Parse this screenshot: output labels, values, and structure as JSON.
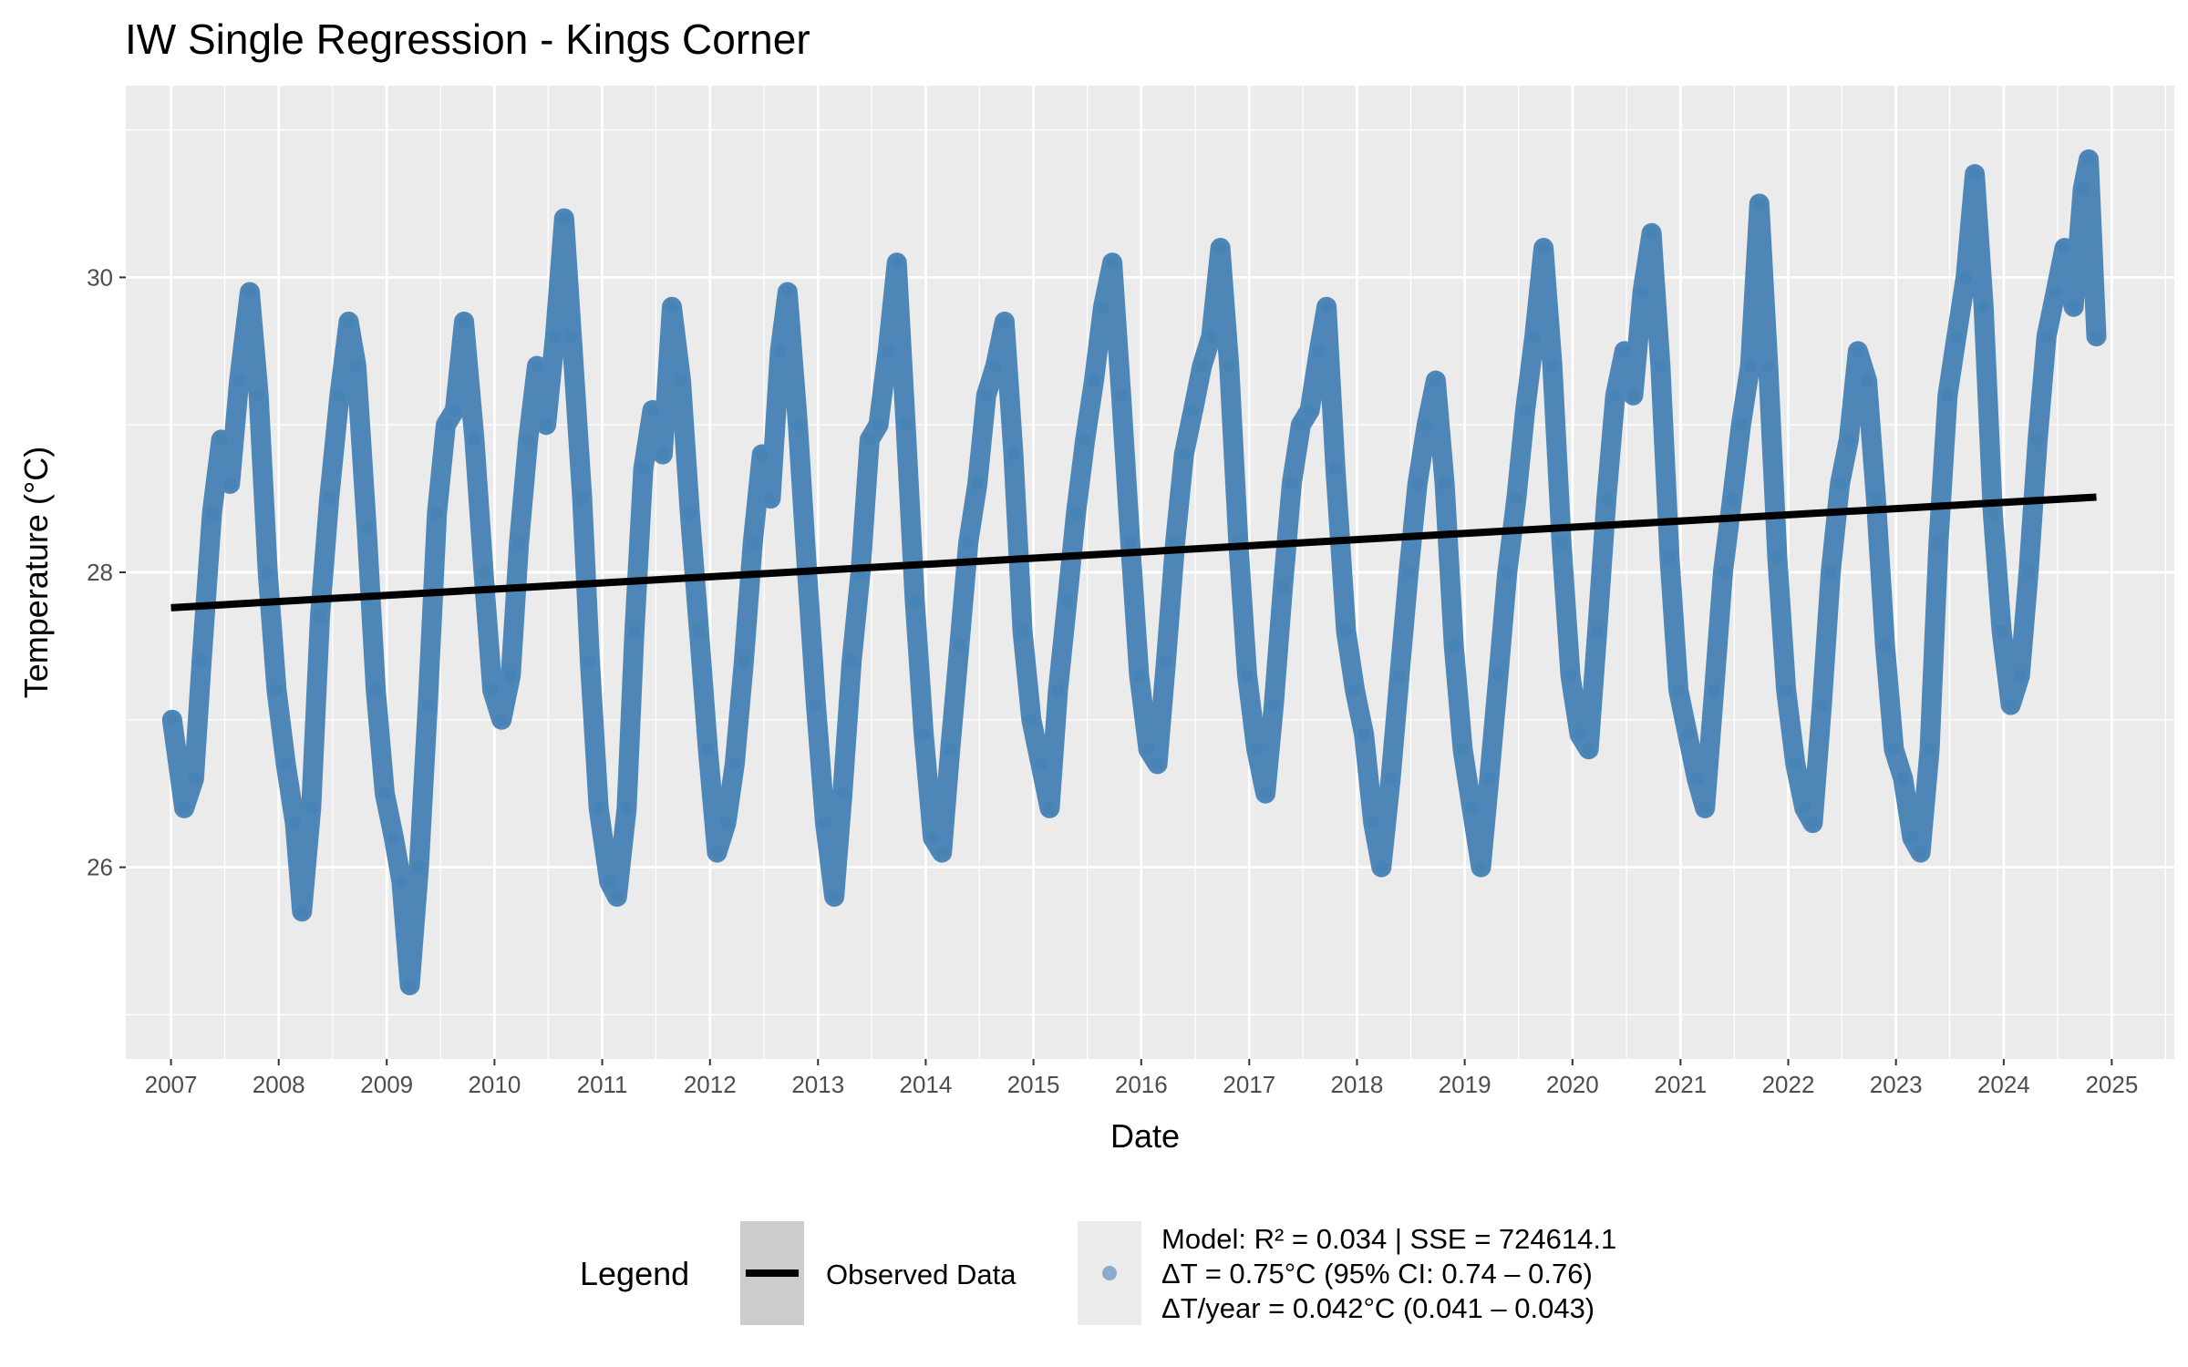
{
  "chart_data": {
    "type": "line",
    "title": "IW Single Regression - Kings Corner",
    "xlabel": "Date",
    "ylabel": "Temperature (°C)",
    "x_ticks": [
      "2007",
      "2008",
      "2009",
      "2010",
      "2011",
      "2012",
      "2013",
      "2014",
      "2015",
      "2016",
      "2017",
      "2018",
      "2019",
      "2020",
      "2021",
      "2022",
      "2023",
      "2024",
      "2025"
    ],
    "y_ticks": [
      26,
      28,
      30
    ],
    "xlim": [
      "2006-08-01",
      "2025-08-01"
    ],
    "ylim": [
      24.7,
      31.3
    ],
    "grid": true,
    "legend_placement": "bottom",
    "series": [
      {
        "name": "Observed Data",
        "kind": "observed",
        "color": "#4682B4",
        "points": [
          [
            "2007-01-05",
            27.0
          ],
          [
            "2007-02-15",
            26.4
          ],
          [
            "2007-03-20",
            26.6
          ],
          [
            "2007-04-15",
            27.4
          ],
          [
            "2007-05-20",
            28.4
          ],
          [
            "2007-06-20",
            28.9
          ],
          [
            "2007-07-20",
            28.6
          ],
          [
            "2007-08-20",
            29.3
          ],
          [
            "2007-09-25",
            29.9
          ],
          [
            "2007-10-25",
            29.2
          ],
          [
            "2007-11-25",
            28.0
          ],
          [
            "2007-12-25",
            27.2
          ],
          [
            "2008-01-25",
            26.7
          ],
          [
            "2008-02-25",
            26.3
          ],
          [
            "2008-03-20",
            25.7
          ],
          [
            "2008-04-20",
            26.4
          ],
          [
            "2008-05-20",
            27.7
          ],
          [
            "2008-06-20",
            28.5
          ],
          [
            "2008-07-25",
            29.2
          ],
          [
            "2008-08-25",
            29.7
          ],
          [
            "2008-09-20",
            29.4
          ],
          [
            "2008-10-25",
            28.3
          ],
          [
            "2008-11-25",
            27.2
          ],
          [
            "2008-12-25",
            26.5
          ],
          [
            "2009-01-25",
            26.2
          ],
          [
            "2009-02-20",
            25.9
          ],
          [
            "2009-03-20",
            25.2
          ],
          [
            "2009-04-20",
            26.0
          ],
          [
            "2009-05-20",
            27.1
          ],
          [
            "2009-06-20",
            28.4
          ],
          [
            "2009-07-20",
            29.0
          ],
          [
            "2009-08-20",
            29.1
          ],
          [
            "2009-09-20",
            29.7
          ],
          [
            "2009-10-25",
            28.9
          ],
          [
            "2009-11-25",
            28.0
          ],
          [
            "2009-12-25",
            27.2
          ],
          [
            "2010-01-25",
            27.0
          ],
          [
            "2010-02-25",
            27.3
          ],
          [
            "2010-03-25",
            28.2
          ],
          [
            "2010-04-25",
            28.9
          ],
          [
            "2010-05-25",
            29.4
          ],
          [
            "2010-06-25",
            29.0
          ],
          [
            "2010-07-25",
            29.6
          ],
          [
            "2010-08-25",
            30.4
          ],
          [
            "2010-09-20",
            29.6
          ],
          [
            "2010-10-25",
            28.5
          ],
          [
            "2010-11-20",
            27.4
          ],
          [
            "2010-12-20",
            26.4
          ],
          [
            "2011-01-25",
            25.9
          ],
          [
            "2011-02-20",
            25.8
          ],
          [
            "2011-03-25",
            26.4
          ],
          [
            "2011-04-20",
            27.6
          ],
          [
            "2011-05-20",
            28.7
          ],
          [
            "2011-06-20",
            29.1
          ],
          [
            "2011-07-25",
            28.8
          ],
          [
            "2011-08-25",
            29.8
          ],
          [
            "2011-09-25",
            29.3
          ],
          [
            "2011-10-25",
            28.4
          ],
          [
            "2011-11-25",
            27.6
          ],
          [
            "2011-12-25",
            26.8
          ],
          [
            "2012-01-25",
            26.1
          ],
          [
            "2012-02-25",
            26.3
          ],
          [
            "2012-03-25",
            26.7
          ],
          [
            "2012-04-25",
            27.4
          ],
          [
            "2012-05-25",
            28.2
          ],
          [
            "2012-06-25",
            28.8
          ],
          [
            "2012-07-25",
            28.5
          ],
          [
            "2012-08-25",
            29.5
          ],
          [
            "2012-09-20",
            29.9
          ],
          [
            "2012-10-25",
            29.0
          ],
          [
            "2012-11-25",
            28.0
          ],
          [
            "2012-12-25",
            27.1
          ],
          [
            "2013-01-25",
            26.3
          ],
          [
            "2013-02-25",
            25.8
          ],
          [
            "2013-03-25",
            26.5
          ],
          [
            "2013-04-25",
            27.4
          ],
          [
            "2013-05-25",
            28.0
          ],
          [
            "2013-06-25",
            28.9
          ],
          [
            "2013-07-25",
            29.0
          ],
          [
            "2013-08-25",
            29.5
          ],
          [
            "2013-09-25",
            30.1
          ],
          [
            "2013-10-25",
            29.0
          ],
          [
            "2013-11-25",
            27.8
          ],
          [
            "2013-12-25",
            26.9
          ],
          [
            "2014-01-25",
            26.2
          ],
          [
            "2014-02-25",
            26.1
          ],
          [
            "2014-03-25",
            26.8
          ],
          [
            "2014-04-25",
            27.5
          ],
          [
            "2014-05-25",
            28.2
          ],
          [
            "2014-06-25",
            28.6
          ],
          [
            "2014-07-25",
            29.2
          ],
          [
            "2014-08-25",
            29.4
          ],
          [
            "2014-09-25",
            29.7
          ],
          [
            "2014-10-25",
            28.8
          ],
          [
            "2014-11-25",
            27.6
          ],
          [
            "2014-12-25",
            27.0
          ],
          [
            "2015-01-25",
            26.7
          ],
          [
            "2015-02-25",
            26.4
          ],
          [
            "2015-03-25",
            27.2
          ],
          [
            "2015-04-25",
            27.8
          ],
          [
            "2015-05-25",
            28.4
          ],
          [
            "2015-06-25",
            28.9
          ],
          [
            "2015-07-25",
            29.3
          ],
          [
            "2015-08-25",
            29.8
          ],
          [
            "2015-09-25",
            30.1
          ],
          [
            "2015-10-25",
            29.2
          ],
          [
            "2015-11-25",
            28.2
          ],
          [
            "2015-12-25",
            27.3
          ],
          [
            "2016-01-25",
            26.8
          ],
          [
            "2016-02-25",
            26.7
          ],
          [
            "2016-03-25",
            27.4
          ],
          [
            "2016-04-25",
            28.2
          ],
          [
            "2016-05-25",
            28.8
          ],
          [
            "2016-06-25",
            29.1
          ],
          [
            "2016-07-25",
            29.4
          ],
          [
            "2016-08-25",
            29.6
          ],
          [
            "2016-09-25",
            30.2
          ],
          [
            "2016-10-25",
            29.4
          ],
          [
            "2016-11-25",
            28.2
          ],
          [
            "2016-12-25",
            27.3
          ],
          [
            "2017-01-25",
            26.8
          ],
          [
            "2017-02-25",
            26.5
          ],
          [
            "2017-03-25",
            27.1
          ],
          [
            "2017-04-25",
            27.9
          ],
          [
            "2017-05-25",
            28.6
          ],
          [
            "2017-06-25",
            29.0
          ],
          [
            "2017-07-25",
            29.1
          ],
          [
            "2017-08-25",
            29.5
          ],
          [
            "2017-09-20",
            29.8
          ],
          [
            "2017-10-20",
            28.7
          ],
          [
            "2017-11-25",
            27.6
          ],
          [
            "2017-12-25",
            27.2
          ],
          [
            "2018-01-25",
            26.9
          ],
          [
            "2018-02-25",
            26.3
          ],
          [
            "2018-03-25",
            26.0
          ],
          [
            "2018-04-25",
            26.6
          ],
          [
            "2018-05-25",
            27.3
          ],
          [
            "2018-06-25",
            28.0
          ],
          [
            "2018-07-25",
            28.6
          ],
          [
            "2018-08-25",
            29.0
          ],
          [
            "2018-09-25",
            29.3
          ],
          [
            "2018-10-25",
            28.6
          ],
          [
            "2018-11-25",
            27.5
          ],
          [
            "2018-12-25",
            26.8
          ],
          [
            "2019-01-25",
            26.4
          ],
          [
            "2019-02-25",
            26.0
          ],
          [
            "2019-03-25",
            26.6
          ],
          [
            "2019-04-25",
            27.3
          ],
          [
            "2019-05-25",
            28.0
          ],
          [
            "2019-06-25",
            28.5
          ],
          [
            "2019-07-25",
            29.1
          ],
          [
            "2019-08-25",
            29.6
          ],
          [
            "2019-09-25",
            30.2
          ],
          [
            "2019-10-25",
            29.4
          ],
          [
            "2019-11-25",
            28.2
          ],
          [
            "2019-12-25",
            27.3
          ],
          [
            "2020-01-25",
            26.9
          ],
          [
            "2020-02-25",
            26.8
          ],
          [
            "2020-03-25",
            27.6
          ],
          [
            "2020-04-25",
            28.5
          ],
          [
            "2020-05-25",
            29.2
          ],
          [
            "2020-06-25",
            29.5
          ],
          [
            "2020-07-25",
            29.2
          ],
          [
            "2020-08-25",
            29.9
          ],
          [
            "2020-09-25",
            30.3
          ],
          [
            "2020-10-25",
            29.4
          ],
          [
            "2020-11-25",
            28.1
          ],
          [
            "2020-12-25",
            27.2
          ],
          [
            "2021-01-25",
            26.9
          ],
          [
            "2021-02-25",
            26.6
          ],
          [
            "2021-03-25",
            26.4
          ],
          [
            "2021-04-25",
            27.2
          ],
          [
            "2021-05-25",
            28.0
          ],
          [
            "2021-06-25",
            28.5
          ],
          [
            "2021-07-25",
            29.0
          ],
          [
            "2021-08-25",
            29.4
          ],
          [
            "2021-09-25",
            30.5
          ],
          [
            "2021-10-25",
            29.4
          ],
          [
            "2021-11-25",
            28.1
          ],
          [
            "2021-12-25",
            27.2
          ],
          [
            "2022-01-25",
            26.7
          ],
          [
            "2022-02-25",
            26.4
          ],
          [
            "2022-03-25",
            26.3
          ],
          [
            "2022-04-25",
            27.1
          ],
          [
            "2022-05-25",
            28.0
          ],
          [
            "2022-06-25",
            28.6
          ],
          [
            "2022-07-25",
            28.9
          ],
          [
            "2022-08-25",
            29.5
          ],
          [
            "2022-09-25",
            29.3
          ],
          [
            "2022-10-25",
            28.5
          ],
          [
            "2022-11-25",
            27.5
          ],
          [
            "2022-12-25",
            26.8
          ],
          [
            "2023-01-25",
            26.6
          ],
          [
            "2023-02-25",
            26.2
          ],
          [
            "2023-03-25",
            26.1
          ],
          [
            "2023-04-25",
            26.8
          ],
          [
            "2023-05-25",
            28.2
          ],
          [
            "2023-06-25",
            29.2
          ],
          [
            "2023-07-25",
            29.6
          ],
          [
            "2023-08-25",
            30.0
          ],
          [
            "2023-09-25",
            30.7
          ],
          [
            "2023-10-25",
            29.8
          ],
          [
            "2023-11-25",
            28.4
          ],
          [
            "2023-12-25",
            27.6
          ],
          [
            "2024-01-25",
            27.1
          ],
          [
            "2024-02-25",
            27.3
          ],
          [
            "2024-03-25",
            28.0
          ],
          [
            "2024-04-25",
            28.9
          ],
          [
            "2024-05-25",
            29.6
          ],
          [
            "2024-06-25",
            29.9
          ],
          [
            "2024-07-25",
            30.2
          ],
          [
            "2024-08-25",
            29.8
          ],
          [
            "2024-09-25",
            30.6
          ],
          [
            "2024-10-15",
            30.8
          ],
          [
            "2024-11-10",
            29.6
          ]
        ]
      },
      {
        "name": "Linear fit",
        "kind": "regression",
        "color": "#000000",
        "start": [
          "2007-01-01",
          27.76
        ],
        "end": [
          "2024-11-10",
          28.51
        ]
      }
    ],
    "legend": {
      "title": "Legend",
      "items": [
        {
          "label": "Observed Data",
          "symbol": "line"
        },
        {
          "lines": [
            "Model: R² = 0.034 | SSE = 724614.1",
            "ΔT = 0.75°C (95% CI: 0.74 – 0.76)",
            "ΔT/year = 0.042°C (0.041 – 0.043)"
          ],
          "symbol": "point"
        }
      ]
    }
  }
}
